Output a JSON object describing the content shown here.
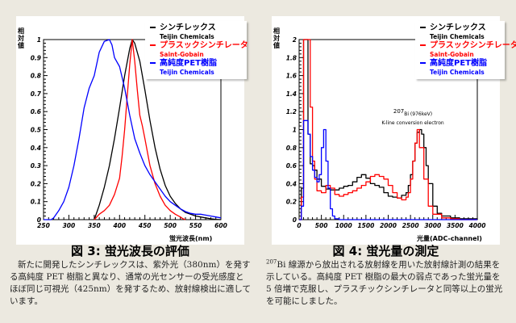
{
  "colors": {
    "black_series": "#000000",
    "red_series": "#ff0000",
    "blue_series": "#0000ff",
    "background": "#ece9e0"
  },
  "legend": [
    {
      "name": "シンチレックス",
      "maker": "Teijin Chemicals",
      "color": "#000000"
    },
    {
      "name": "プラスックシンチレータ",
      "maker": "Saint-Gobain",
      "color": "#ff0000"
    },
    {
      "name": "高純度PET樹脂",
      "maker": "Teijin Chemicals",
      "color": "#0000ff"
    }
  ],
  "figure3": {
    "caption": "図 3: 蛍光波長の評価",
    "description": "新たに開発したシンチレックスは、紫外光（380nm）を発する高純度 PET 樹脂と異なり、通常の光センサーの受光感度とほぼ同じ可視光（425nm）を発するため、放射線検出に適しています。"
  },
  "figure4": {
    "caption": "図 4: 蛍光量の測定",
    "description_sup": "207",
    "description": "Bi 線源から放出される放射線を用いた放射線計測の結果を示している。高純度 PET 樹脂の最大の弱点であった蛍光量を 5 倍増で克服し、プラスチックシンチレータと同等以上の蛍光を可能にしました。",
    "annotation_line1": "Bi (976keV)",
    "annotation_sup": "207",
    "annotation_line2": "K-line conversion electron"
  },
  "chart_data": [
    {
      "type": "line",
      "title": "図 3: 蛍光波長の評価",
      "xlabel": "蛍光波長(nm)",
      "ylabel": "相対値",
      "xlim": [
        250,
        600
      ],
      "ylim": [
        0,
        1
      ],
      "xticks": [
        "250",
        "300",
        "350",
        "400",
        "450",
        "500",
        "550",
        "600"
      ],
      "yticks": [
        "0",
        "0.1",
        "0.2",
        "0.3",
        "0.4",
        "0.5",
        "0.6",
        "0.7",
        "0.8",
        "0.9",
        "1"
      ],
      "legend_position": "top-right",
      "series": [
        {
          "name": "シンチレックス",
          "color": "#000000",
          "x": [
            350,
            360,
            370,
            380,
            390,
            400,
            410,
            420,
            425,
            430,
            440,
            450,
            460,
            470,
            480,
            490,
            500,
            510,
            520,
            530,
            540,
            550,
            560,
            570,
            580,
            590,
            600
          ],
          "y": [
            0,
            0.08,
            0.18,
            0.3,
            0.45,
            0.62,
            0.8,
            0.95,
            1.0,
            0.98,
            0.88,
            0.72,
            0.55,
            0.4,
            0.28,
            0.19,
            0.13,
            0.09,
            0.06,
            0.04,
            0.03,
            0.02,
            0.015,
            0.01,
            0.005,
            0.002,
            0
          ]
        },
        {
          "name": "プラスックシンチレータ",
          "color": "#ff0000",
          "x": [
            350,
            360,
            370,
            380,
            390,
            400,
            405,
            410,
            415,
            420,
            425,
            430,
            435,
            440,
            445,
            450,
            460,
            470,
            480,
            490,
            500,
            510,
            520,
            525,
            530
          ],
          "y": [
            0,
            0.03,
            0.05,
            0.08,
            0.14,
            0.23,
            0.35,
            0.5,
            0.68,
            0.86,
            1.0,
            0.88,
            0.72,
            0.58,
            0.52,
            0.45,
            0.3,
            0.2,
            0.13,
            0.08,
            0.05,
            0.03,
            0.015,
            0.005,
            0
          ]
        },
        {
          "name": "高純度PET樹脂",
          "color": "#0000ff",
          "x": [
            250,
            260,
            265,
            270,
            280,
            290,
            300,
            310,
            320,
            330,
            340,
            350,
            360,
            370,
            380,
            385,
            390,
            400,
            410,
            420,
            430,
            440,
            450,
            460,
            470,
            480,
            490,
            500,
            510,
            520,
            530,
            540,
            550,
            560,
            570,
            580,
            590,
            600
          ],
          "y": [
            0,
            0,
            0,
            0.01,
            0.05,
            0.1,
            0.18,
            0.3,
            0.45,
            0.62,
            0.73,
            0.8,
            0.93,
            0.99,
            1.0,
            0.97,
            0.9,
            0.85,
            0.73,
            0.58,
            0.45,
            0.37,
            0.3,
            0.25,
            0.21,
            0.17,
            0.13,
            0.1,
            0.08,
            0.06,
            0.045,
            0.035,
            0.03,
            0.03,
            0.025,
            0.02,
            0.015,
            0.01
          ]
        }
      ]
    },
    {
      "type": "line",
      "title": "図 4: 蛍光量の測定",
      "xlabel": "光量(ADC-channel)",
      "ylabel": "相対値",
      "xlim": [
        0,
        4000
      ],
      "ylim": [
        0,
        2
      ],
      "xticks": [
        "0",
        "500",
        "1000",
        "1500",
        "2000",
        "2500",
        "3000",
        "3500",
        "4000"
      ],
      "yticks": [
        "0",
        "0.2",
        "0.4",
        "0.6",
        "0.8",
        "1",
        "1.2",
        "1.4",
        "1.6",
        "1.8",
        "2"
      ],
      "legend_position": "top-right",
      "series": [
        {
          "name": "シンチレックス",
          "color": "#000000",
          "x": [
            0,
            50,
            100,
            150,
            200,
            250,
            300,
            350,
            400,
            500,
            600,
            700,
            800,
            900,
            1000,
            1100,
            1200,
            1300,
            1400,
            1500,
            1600,
            1700,
            1800,
            1900,
            2000,
            2100,
            2200,
            2300,
            2400,
            2450,
            2500,
            2550,
            2600,
            2650,
            2700,
            2750,
            2800,
            2850,
            2900,
            3000,
            3100,
            3200,
            3400,
            3600,
            4000
          ],
          "y": [
            0,
            0.35,
            2.0,
            2.0,
            0.95,
            0.62,
            0.6,
            0.55,
            0.45,
            0.37,
            0.34,
            0.33,
            0.33,
            0.35,
            0.37,
            0.38,
            0.42,
            0.47,
            0.5,
            0.46,
            0.4,
            0.38,
            0.36,
            0.3,
            0.26,
            0.25,
            0.24,
            0.27,
            0.3,
            0.38,
            0.5,
            0.65,
            0.85,
            0.97,
            1.0,
            0.95,
            0.8,
            0.6,
            0.4,
            0.15,
            0.07,
            0.04,
            0.02,
            0.01,
            0
          ]
        },
        {
          "name": "プラスックシンチレータ",
          "color": "#ff0000",
          "x": [
            0,
            50,
            100,
            150,
            200,
            250,
            300,
            350,
            400,
            500,
            600,
            700,
            800,
            900,
            1000,
            1100,
            1200,
            1300,
            1400,
            1500,
            1600,
            1700,
            1800,
            1900,
            2000,
            2100,
            2200,
            2300,
            2400,
            2450,
            2500,
            2550,
            2600,
            2650,
            2700,
            2800,
            2900,
            3000,
            3200,
            3400,
            3600,
            4000
          ],
          "y": [
            0,
            0.25,
            2.0,
            2.0,
            2.0,
            1.25,
            0.65,
            0.45,
            0.32,
            0.3,
            0.38,
            0.35,
            0.28,
            0.26,
            0.28,
            0.3,
            0.32,
            0.35,
            0.38,
            0.42,
            0.48,
            0.5,
            0.48,
            0.45,
            0.38,
            0.3,
            0.24,
            0.22,
            0.25,
            0.3,
            0.45,
            0.65,
            0.85,
            1.0,
            0.8,
            0.45,
            0.15,
            0.06,
            0.02,
            0.01,
            0,
            0
          ]
        },
        {
          "name": "高純度PET樹脂",
          "color": "#0000ff",
          "x": [
            0,
            50,
            100,
            150,
            200,
            250,
            300,
            350,
            400,
            450,
            500,
            550,
            600,
            650,
            700,
            750,
            800,
            900,
            1000,
            4000
          ],
          "y": [
            0,
            0.15,
            1.1,
            1.1,
            0.95,
            0.7,
            0.55,
            0.47,
            0.42,
            0.5,
            0.8,
            1.0,
            0.65,
            0.35,
            0.12,
            0.04,
            0.01,
            0,
            0,
            0
          ]
        }
      ]
    }
  ],
  "axis_labels": {
    "ylabel": "相対値",
    "fig3_xunit": "蛍光波長(nm)",
    "fig4_xunit": "光量(ADC-channel)"
  }
}
